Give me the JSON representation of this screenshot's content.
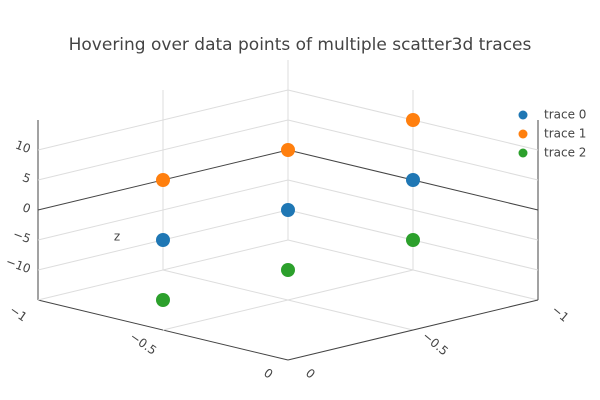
{
  "chart_data": {
    "type": "scatter3d",
    "title": "Hovering over data points of multiple scatter3d traces",
    "zlabel": "z",
    "xlim": [
      -1,
      0
    ],
    "xticks": [
      {
        "value": -1,
        "label": "−1"
      },
      {
        "value": -0.5,
        "label": "−0.5"
      },
      0
    ],
    "ylim": [
      -1,
      0
    ],
    "yticks": [
      {
        "value": -1,
        "label": "−1"
      },
      {
        "value": -0.5,
        "label": "−0.5"
      },
      0
    ],
    "zlim": [
      -15,
      15
    ],
    "zticks": [
      {
        "value": -10,
        "label": "−10"
      },
      {
        "value": -5,
        "label": "−5"
      },
      0,
      5,
      10
    ],
    "grid": true,
    "legend": "right",
    "series": [
      {
        "name": "trace 0",
        "color": "#1f77b4",
        "x": [
          -0.25,
          -0.5,
          -0.75
        ],
        "y": [
          -0.75,
          -0.5,
          -0.25
        ],
        "z": [
          -5,
          0,
          5
        ]
      },
      {
        "name": "trace 1",
        "color": "#ff7f0e",
        "x": [
          -0.25,
          -0.5,
          -0.75
        ],
        "y": [
          -0.75,
          -0.5,
          -0.25
        ],
        "z": [
          5,
          10,
          15
        ]
      },
      {
        "name": "trace 2",
        "color": "#2ca02c",
        "x": [
          -0.25,
          -0.5,
          -0.75
        ],
        "y": [
          -0.75,
          -0.5,
          -0.25
        ],
        "z": [
          -15,
          -10,
          -5
        ]
      }
    ]
  }
}
